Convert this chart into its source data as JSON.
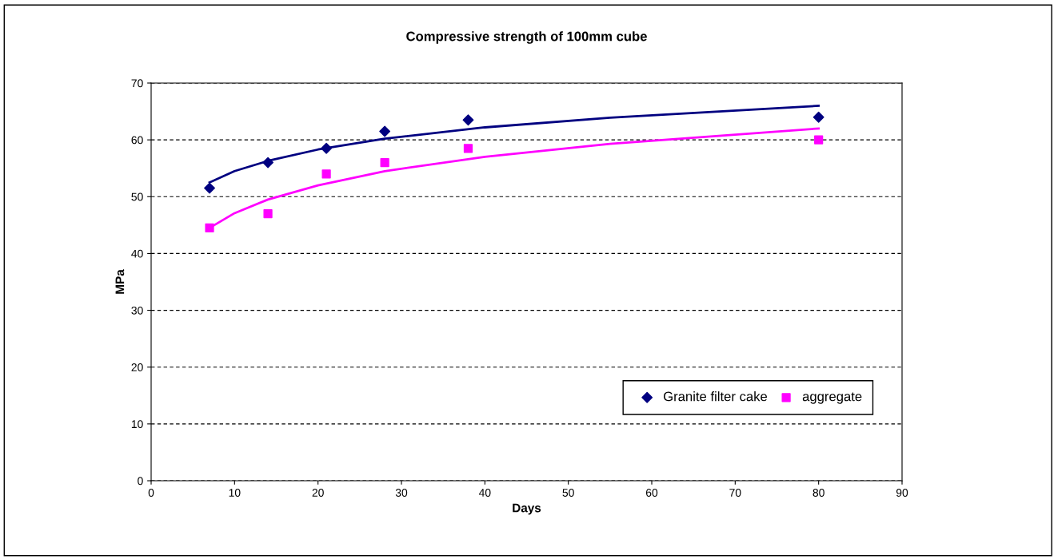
{
  "chart_data": {
    "type": "scatter",
    "title": "Compressive strength of 100mm cube",
    "xlabel": "Days",
    "ylabel": "MPa",
    "x": [
      7,
      14,
      21,
      28,
      38,
      80
    ],
    "series": [
      {
        "name": "Granite filter cake",
        "color": "#000080",
        "values": [
          51.5,
          56,
          58.5,
          61.5,
          63.5,
          64
        ],
        "marker": "diamond"
      },
      {
        "name": "aggregate",
        "color": "#ff00ff",
        "values": [
          44.5,
          47,
          54,
          56,
          58.5,
          60
        ],
        "marker": "square"
      },
      {
        "type": "line",
        "color": "#000080",
        "x": [
          7,
          10,
          14,
          20,
          28,
          40,
          55,
          80
        ],
        "values": [
          52.5,
          54.5,
          56.3,
          58.3,
          60.2,
          62.2,
          63.9,
          66.0
        ]
      },
      {
        "type": "line",
        "color": "#ff00ff",
        "x": [
          7,
          10,
          14,
          20,
          28,
          40,
          55,
          80
        ],
        "values": [
          44.5,
          47.1,
          49.5,
          52.0,
          54.5,
          57.0,
          59.3,
          62.0
        ]
      }
    ],
    "xlim": [
      0,
      90
    ],
    "xticks": [
      0,
      10,
      20,
      30,
      40,
      50,
      60,
      70,
      80,
      90
    ],
    "ylim": [
      0,
      70
    ],
    "yticks": [
      0,
      10,
      20,
      30,
      40,
      50,
      60,
      70
    ],
    "grid": "y",
    "legend": "bottom right",
    "line_style": "solid"
  }
}
